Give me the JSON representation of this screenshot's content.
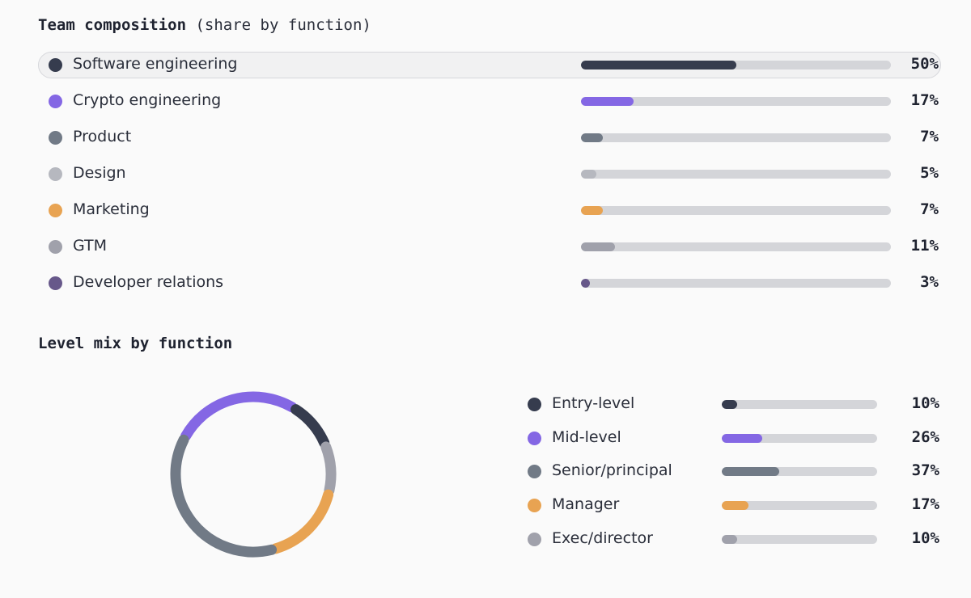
{
  "composition": {
    "title": "Team composition",
    "subtitle": "(share by function)"
  },
  "levels": {
    "title": "Level mix by function"
  },
  "chart_data": [
    {
      "type": "bar",
      "orientation": "horizontal",
      "title": "Team composition",
      "subtitle": "(share by function)",
      "unit": "%",
      "xlim": [
        0,
        100
      ],
      "active_index": 0,
      "items": [
        {
          "label": "Software engineering",
          "value": 50,
          "display": "50%",
          "color": "#363c4e"
        },
        {
          "label": "Crypto engineering",
          "value": 17,
          "display": "17%",
          "color": "#8467e4"
        },
        {
          "label": "Product",
          "value": 7,
          "display": "7%",
          "color": "#717a86"
        },
        {
          "label": "Design",
          "value": 5,
          "display": "5%",
          "color": "#b6b8bf"
        },
        {
          "label": "Marketing",
          "value": 7,
          "display": "7%",
          "color": "#e8a352"
        },
        {
          "label": "GTM",
          "value": 11,
          "display": "11%",
          "color": "#a0a1ab"
        },
        {
          "label": "Developer relations",
          "value": 3,
          "display": "3%",
          "color": "#67588a"
        }
      ]
    },
    {
      "type": "pie",
      "variant": "donut",
      "title": "Level mix by function",
      "unit": "%",
      "items": [
        {
          "label": "Entry-level",
          "value": 10,
          "display": "10%",
          "color": "#363c4e"
        },
        {
          "label": "Mid-level",
          "value": 26,
          "display": "26%",
          "color": "#8467e4"
        },
        {
          "label": "Senior/principal",
          "value": 37,
          "display": "37%",
          "color": "#717a86"
        },
        {
          "label": "Manager",
          "value": 17,
          "display": "17%",
          "color": "#e8a352"
        },
        {
          "label": "Exec/director",
          "value": 10,
          "display": "10%",
          "color": "#a0a1ab"
        }
      ],
      "donut_order": [
        "Mid-level",
        "Entry-level",
        "Exec/director",
        "Manager",
        "Senior/principal"
      ]
    }
  ]
}
